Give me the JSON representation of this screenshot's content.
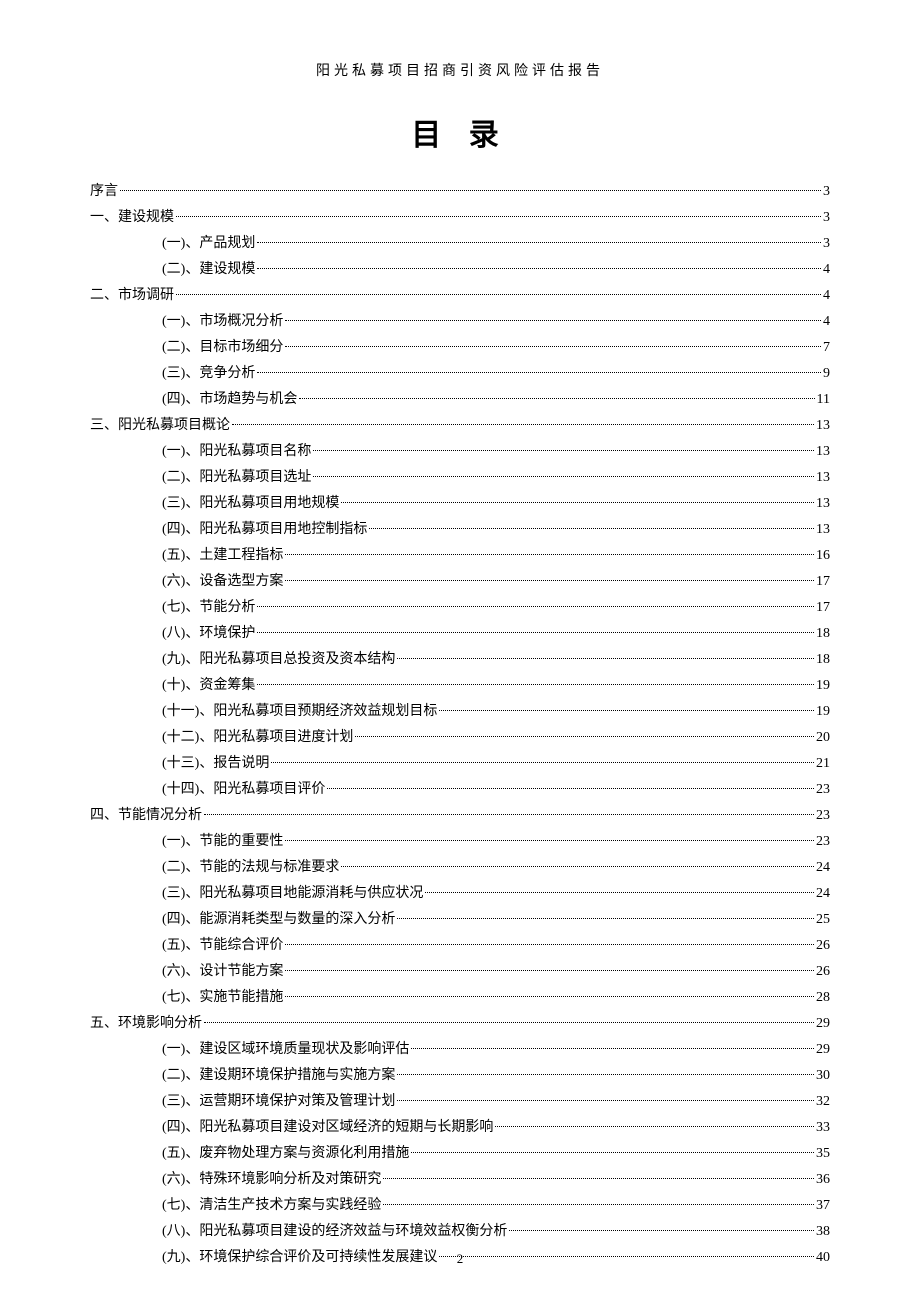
{
  "header": "阳光私募项目招商引资风险评估报告",
  "title": "目 录",
  "page_number": "2",
  "entries": [
    {
      "level": 0,
      "label": "序言",
      "page": "3"
    },
    {
      "level": 0,
      "label": "一、建设规模",
      "page": "3"
    },
    {
      "level": 1,
      "label": "(一)、产品规划",
      "page": "3"
    },
    {
      "level": 1,
      "label": "(二)、建设规模",
      "page": "4"
    },
    {
      "level": 0,
      "label": "二、市场调研",
      "page": "4"
    },
    {
      "level": 1,
      "label": "(一)、市场概况分析",
      "page": "4"
    },
    {
      "level": 1,
      "label": "(二)、目标市场细分",
      "page": "7"
    },
    {
      "level": 1,
      "label": "(三)、竞争分析",
      "page": "9"
    },
    {
      "level": 1,
      "label": "(四)、市场趋势与机会",
      "page": "11"
    },
    {
      "level": 0,
      "label": "三、阳光私募项目概论",
      "page": "13"
    },
    {
      "level": 1,
      "label": "(一)、阳光私募项目名称",
      "page": "13"
    },
    {
      "level": 1,
      "label": "(二)、阳光私募项目选址",
      "page": "13"
    },
    {
      "level": 1,
      "label": "(三)、阳光私募项目用地规模",
      "page": "13"
    },
    {
      "level": 1,
      "label": "(四)、阳光私募项目用地控制指标",
      "page": "13"
    },
    {
      "level": 1,
      "label": "(五)、土建工程指标",
      "page": "16"
    },
    {
      "level": 1,
      "label": "(六)、设备选型方案",
      "page": "17"
    },
    {
      "level": 1,
      "label": "(七)、节能分析",
      "page": "17"
    },
    {
      "level": 1,
      "label": "(八)、环境保护",
      "page": "18"
    },
    {
      "level": 1,
      "label": "(九)、阳光私募项目总投资及资本结构",
      "page": "18"
    },
    {
      "level": 1,
      "label": "(十)、资金筹集",
      "page": "19"
    },
    {
      "level": 1,
      "label": "(十一)、阳光私募项目预期经济效益规划目标",
      "page": "19"
    },
    {
      "level": 1,
      "label": "(十二)、阳光私募项目进度计划",
      "page": "20"
    },
    {
      "level": 1,
      "label": "(十三)、报告说明",
      "page": "21"
    },
    {
      "level": 1,
      "label": "(十四)、阳光私募项目评价",
      "page": "23"
    },
    {
      "level": 0,
      "label": "四、节能情况分析",
      "page": "23"
    },
    {
      "level": 1,
      "label": "(一)、节能的重要性",
      "page": "23"
    },
    {
      "level": 1,
      "label": "(二)、节能的法规与标准要求",
      "page": "24"
    },
    {
      "level": 1,
      "label": "(三)、阳光私募项目地能源消耗与供应状况",
      "page": "24"
    },
    {
      "level": 1,
      "label": "(四)、能源消耗类型与数量的深入分析",
      "page": "25"
    },
    {
      "level": 1,
      "label": "(五)、节能综合评价",
      "page": "26"
    },
    {
      "level": 1,
      "label": "(六)、设计节能方案",
      "page": "26"
    },
    {
      "level": 1,
      "label": "(七)、实施节能措施",
      "page": "28"
    },
    {
      "level": 0,
      "label": "五、环境影响分析",
      "page": "29"
    },
    {
      "level": 1,
      "label": "(一)、建设区域环境质量现状及影响评估",
      "page": "29"
    },
    {
      "level": 1,
      "label": "(二)、建设期环境保护措施与实施方案",
      "page": "30"
    },
    {
      "level": 1,
      "label": "(三)、运营期环境保护对策及管理计划",
      "page": "32"
    },
    {
      "level": 1,
      "label": "(四)、阳光私募项目建设对区域经济的短期与长期影响",
      "page": "33"
    },
    {
      "level": 1,
      "label": "(五)、废弃物处理方案与资源化利用措施",
      "page": "35"
    },
    {
      "level": 1,
      "label": "(六)、特殊环境影响分析及对策研究",
      "page": "36"
    },
    {
      "level": 1,
      "label": "(七)、清洁生产技术方案与实践经验",
      "page": "37"
    },
    {
      "level": 1,
      "label": "(八)、阳光私募项目建设的经济效益与环境效益权衡分析",
      "page": "38"
    },
    {
      "level": 1,
      "label": "(九)、环境保护综合评价及可持续性发展建议",
      "page": "40"
    }
  ]
}
